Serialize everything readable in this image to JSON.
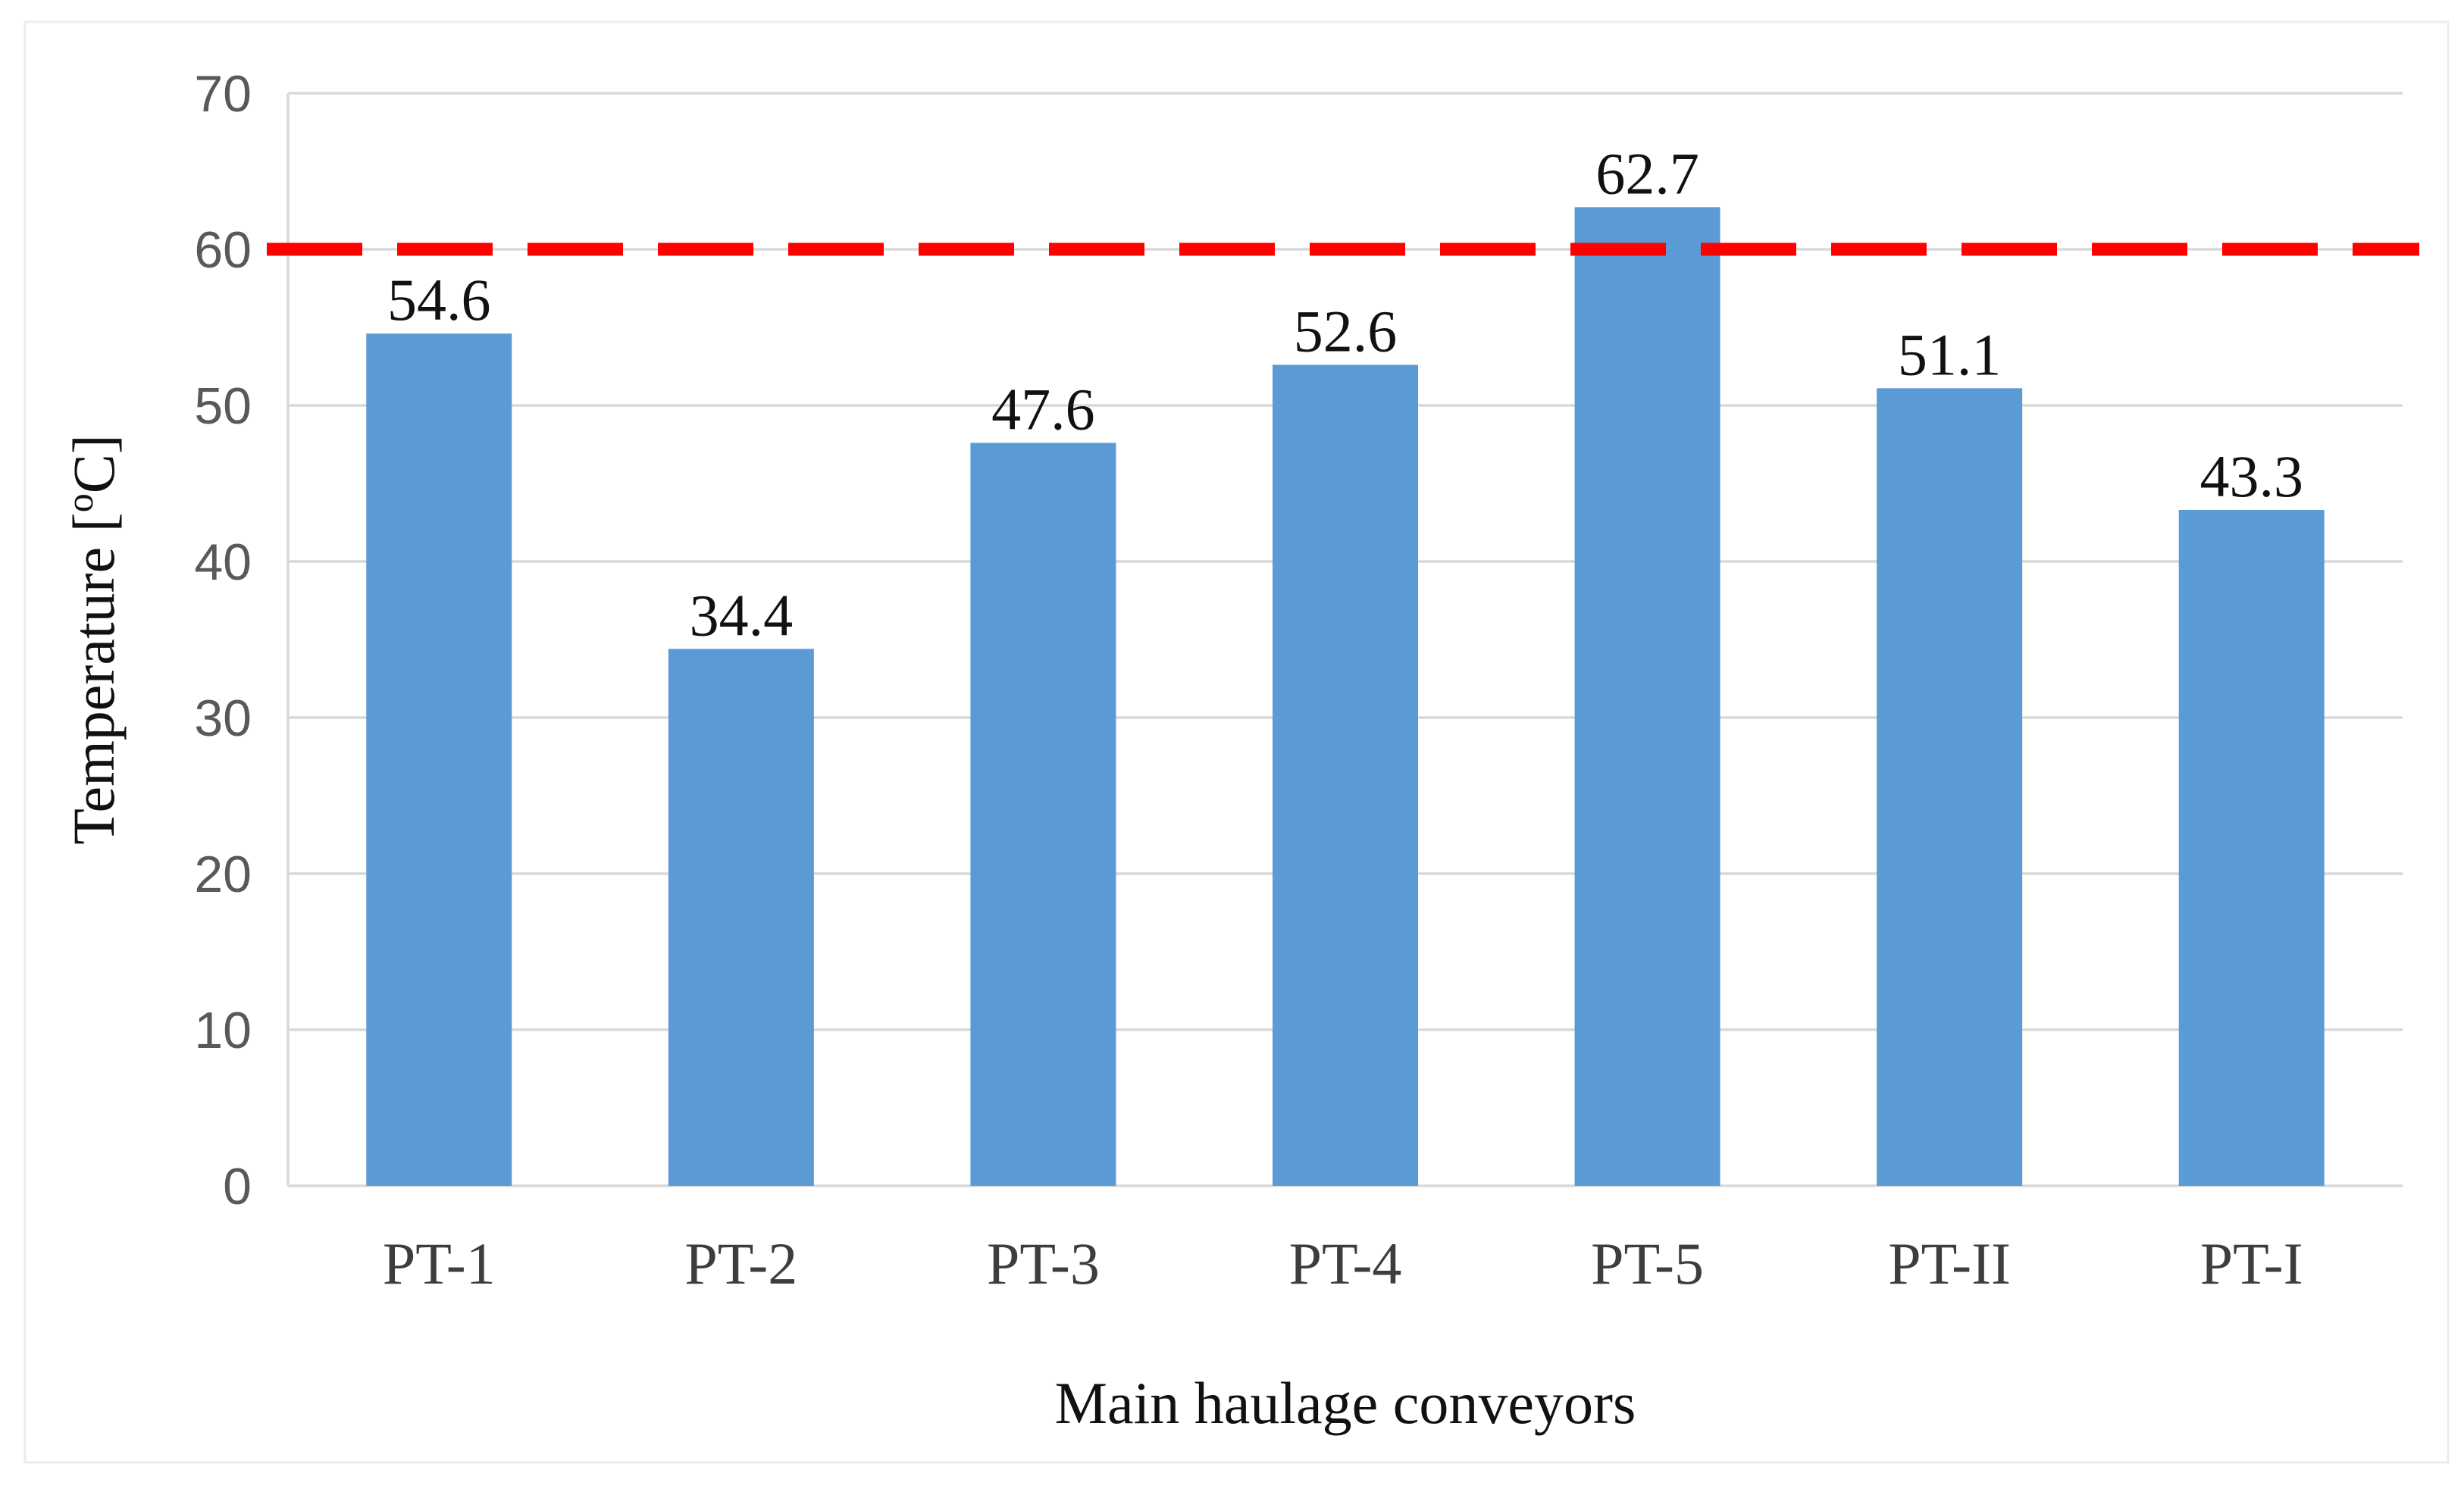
{
  "figure": {
    "background": "#FFFFFF",
    "border_color": "#ECECEC"
  },
  "chart_data": {
    "type": "bar",
    "title": "",
    "categories": [
      "PT-1",
      "PT-2",
      "PT-3",
      "PT-4",
      "PT-5",
      "PT-II",
      "PT-I"
    ],
    "values": [
      54.6,
      34.4,
      47.6,
      52.6,
      62.7,
      51.1,
      43.3
    ],
    "data_labels": [
      "54.6",
      "34.4",
      "47.6",
      "52.6",
      "62.7",
      "51.1",
      "43.3"
    ],
    "xlabel": "Main haulage conveyors",
    "ylabel_prefix": "Temperature [",
    "ylabel_sup": "o",
    "ylabel_suffix": "C]",
    "ylim": [
      0,
      70
    ],
    "yticks": [
      "0",
      "10",
      "20",
      "30",
      "40",
      "50",
      "60",
      "70"
    ],
    "ytick_values": [
      0,
      10,
      20,
      30,
      40,
      50,
      60,
      70
    ],
    "grid": true,
    "legend": "none",
    "threshold_line": {
      "value": 60,
      "style": "dashed",
      "color": "#FF0000"
    },
    "colors": {
      "bar": "#5B9BD5",
      "gridline": "#D9D9D9",
      "axis_line": "#D9D9D9",
      "tick_label": "#595959",
      "category_label": "#3D3D3D",
      "value_label": "#111111",
      "axis_title": "#111111"
    }
  }
}
